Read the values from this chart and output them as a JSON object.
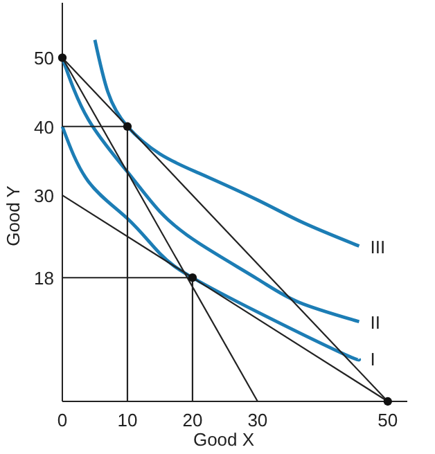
{
  "chart_data": {
    "type": "line",
    "xlabel": "Good X",
    "ylabel": "Good Y",
    "xlim": [
      0,
      53
    ],
    "ylim": [
      0,
      58
    ],
    "xticks": [
      0,
      10,
      20,
      30,
      50
    ],
    "yticks": [
      18,
      30,
      40,
      50
    ],
    "grid": false,
    "legend": false,
    "marker": "none",
    "line_style": "solid",
    "series": [
      {
        "name": "III",
        "color": "#1c7db5",
        "x": [
          5,
          7,
          10,
          15,
          21,
          30,
          37,
          45.6
        ],
        "values": [
          52.6,
          45,
          40,
          36,
          33.2,
          29.3,
          26,
          22.6
        ]
      },
      {
        "name": "II",
        "color": "#1c7db5",
        "x": [
          0,
          4,
          10,
          15,
          21,
          30,
          36.4,
          45.6
        ],
        "values": [
          50,
          41,
          33.4,
          27.6,
          23,
          17.8,
          14.4,
          11.6
        ]
      },
      {
        "name": "I",
        "color": "#1c7db5",
        "x": [
          0,
          4,
          10,
          15,
          20,
          30,
          43,
          45.6
        ],
        "values": [
          40,
          32,
          26.6,
          21.5,
          18,
          13,
          7,
          6.2
        ]
      },
      {
        "color": "#222222",
        "x": [
          0,
          50
        ],
        "values": [
          50,
          0
        ]
      },
      {
        "color": "#222222",
        "x": [
          0,
          30
        ],
        "values": [
          50,
          0
        ]
      },
      {
        "color": "#222222",
        "x": [
          0,
          50
        ],
        "values": [
          30,
          0
        ]
      },
      {
        "color": "#222222",
        "x": [
          0,
          10,
          10
        ],
        "values": [
          40,
          40,
          0
        ]
      },
      {
        "color": "#222222",
        "x": [
          0,
          20,
          20
        ],
        "values": [
          18,
          18,
          0
        ]
      },
      {
        "type": "scatter",
        "marker": "circle",
        "color": "#111111",
        "x": [
          0,
          10,
          20,
          50
        ],
        "values": [
          50,
          40,
          18,
          0
        ]
      }
    ]
  }
}
